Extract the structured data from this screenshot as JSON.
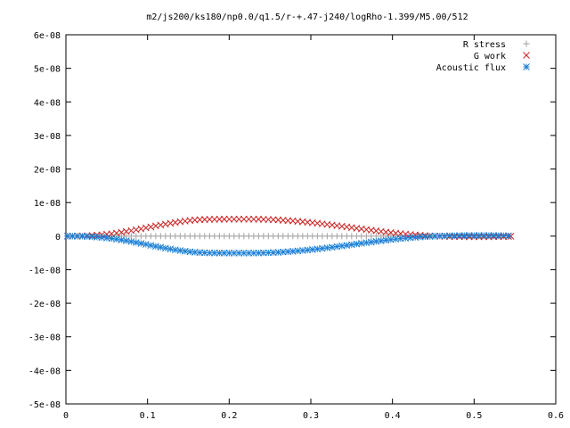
{
  "chart_data": {
    "type": "scatter",
    "title": "m2/js200/ks180/np0.0/q1.5/r-+.47-j240/logRho-1.399/M5.00/512",
    "xlabel": "",
    "ylabel": "",
    "xlim": [
      0,
      0.6
    ],
    "ylim": [
      -5e-08,
      6e-08
    ],
    "x_ticks": [
      "0",
      "0.1",
      "0.2",
      "0.3",
      "0.4",
      "0.5",
      "0.6"
    ],
    "y_ticks": [
      "6e-08",
      "5e-08",
      "4e-08",
      "3e-08",
      "2e-08",
      "1e-08",
      "0",
      "-1e-08",
      "-2e-08",
      "-3e-08",
      "-4e-08",
      "-5e-08"
    ],
    "legend_position": "top-right",
    "series": [
      {
        "name": "R stress",
        "marker": "+",
        "color": "#a0a0a0",
        "x": [
          0.002,
          0.008,
          0.014,
          0.02,
          0.026,
          0.032,
          0.038,
          0.044,
          0.05,
          0.056,
          0.062,
          0.068,
          0.074,
          0.08,
          0.086,
          0.092,
          0.098,
          0.104,
          0.11,
          0.116,
          0.122,
          0.128,
          0.134,
          0.14,
          0.146,
          0.152,
          0.158,
          0.164,
          0.17,
          0.176,
          0.182,
          0.188,
          0.194,
          0.2,
          0.206,
          0.212,
          0.218,
          0.224,
          0.23,
          0.236,
          0.242,
          0.248,
          0.254,
          0.26,
          0.266,
          0.272,
          0.278,
          0.284,
          0.29,
          0.296,
          0.302,
          0.308,
          0.314,
          0.32,
          0.326,
          0.332,
          0.338,
          0.344,
          0.35,
          0.356,
          0.362,
          0.368,
          0.374,
          0.38,
          0.386,
          0.392,
          0.398,
          0.404,
          0.41,
          0.416,
          0.422,
          0.428,
          0.434,
          0.44,
          0.446,
          0.452,
          0.458,
          0.464,
          0.47,
          0.476,
          0.482,
          0.488,
          0.494,
          0.5,
          0.506,
          0.512,
          0.518,
          0.524,
          0.53,
          0.536,
          0.542
        ],
        "y": [
          0,
          0,
          0,
          0,
          0,
          0,
          0,
          0,
          0,
          0,
          0,
          0,
          0,
          0,
          0,
          0,
          0,
          0,
          0,
          0,
          0,
          0,
          0,
          0,
          0,
          0,
          0,
          0,
          0,
          0,
          0,
          0,
          0,
          0,
          0,
          0,
          0,
          0,
          0,
          0,
          0,
          0,
          0,
          0,
          0,
          0,
          0,
          0,
          0,
          0,
          0,
          0,
          0,
          0,
          0,
          0,
          0,
          0,
          0,
          0,
          0,
          0,
          0,
          0,
          0,
          0,
          0,
          0,
          0,
          0,
          0,
          0,
          0,
          0,
          0,
          0,
          0,
          0,
          0,
          0,
          0,
          0,
          0,
          0,
          0,
          0,
          0,
          0,
          0,
          0,
          0
        ]
      },
      {
        "name": "G work",
        "marker": "x",
        "color": "#cc2222",
        "x": [
          0.002,
          0.008,
          0.014,
          0.02,
          0.026,
          0.032,
          0.038,
          0.044,
          0.05,
          0.056,
          0.062,
          0.068,
          0.074,
          0.08,
          0.086,
          0.092,
          0.098,
          0.104,
          0.11,
          0.116,
          0.122,
          0.128,
          0.134,
          0.14,
          0.146,
          0.152,
          0.158,
          0.164,
          0.17,
          0.176,
          0.182,
          0.188,
          0.194,
          0.2,
          0.206,
          0.212,
          0.218,
          0.224,
          0.23,
          0.236,
          0.242,
          0.248,
          0.254,
          0.26,
          0.266,
          0.272,
          0.278,
          0.284,
          0.29,
          0.296,
          0.302,
          0.308,
          0.314,
          0.32,
          0.326,
          0.332,
          0.338,
          0.344,
          0.35,
          0.356,
          0.362,
          0.368,
          0.374,
          0.38,
          0.386,
          0.392,
          0.398,
          0.404,
          0.41,
          0.416,
          0.422,
          0.428,
          0.434,
          0.44,
          0.446,
          0.452,
          0.458,
          0.464,
          0.47,
          0.476,
          0.482,
          0.488,
          0.494,
          0.5,
          0.506,
          0.512,
          0.518,
          0.524,
          0.53,
          0.536,
          0.542,
          0.545
        ],
        "y": [
          0,
          5e-12,
          2e-11,
          5e-11,
          1e-10,
          1.8e-10,
          2.8e-10,
          4e-10,
          5.5e-10,
          7.2e-10,
          9.2e-10,
          1.14e-09,
          1.38e-09,
          1.63e-09,
          1.9e-09,
          2.18e-09,
          2.46e-09,
          2.75e-09,
          3.03e-09,
          3.31e-09,
          3.58e-09,
          3.84e-09,
          4.08e-09,
          4.3e-09,
          4.49e-09,
          4.66e-09,
          4.8e-09,
          4.9e-09,
          4.97e-09,
          5.01e-09,
          5.02e-09,
          5.03e-09,
          5.04e-09,
          5.05e-09,
          5.05e-09,
          5.05e-09,
          5.05e-09,
          5.05e-09,
          5.05e-09,
          5.03e-09,
          5e-09,
          4.95e-09,
          4.9e-09,
          4.83e-09,
          4.74e-09,
          4.64e-09,
          4.53e-09,
          4.41e-09,
          4.28e-09,
          4.14e-09,
          3.99e-09,
          3.83e-09,
          3.66e-09,
          3.49e-09,
          3.31e-09,
          3.12e-09,
          2.93e-09,
          2.74e-09,
          2.54e-09,
          2.35e-09,
          2.15e-09,
          1.96e-09,
          1.77e-09,
          1.58e-09,
          1.4e-09,
          1.22e-09,
          1.05e-09,
          8.9e-10,
          7.4e-10,
          6e-10,
          4.7e-10,
          3.5e-10,
          2.5e-10,
          1.6e-10,
          8e-11,
          2e-11,
          -3e-11,
          -7e-11,
          -1.1e-10,
          -1.4e-10,
          -1.6e-10,
          -1.8e-10,
          -1.9e-10,
          -2e-10,
          -2e-10,
          -2e-10,
          -2e-10,
          -1.9e-10,
          -1.7e-10,
          -1.4e-10,
          -1e-10,
          -4e-11
        ]
      },
      {
        "name": "Acoustic flux",
        "marker": "*",
        "color": "#1a7fd6",
        "x": [
          0.002,
          0.008,
          0.014,
          0.02,
          0.026,
          0.032,
          0.038,
          0.044,
          0.05,
          0.056,
          0.062,
          0.068,
          0.074,
          0.08,
          0.086,
          0.092,
          0.098,
          0.104,
          0.11,
          0.116,
          0.122,
          0.128,
          0.134,
          0.14,
          0.146,
          0.152,
          0.158,
          0.164,
          0.17,
          0.176,
          0.182,
          0.188,
          0.194,
          0.2,
          0.206,
          0.212,
          0.218,
          0.224,
          0.23,
          0.236,
          0.242,
          0.248,
          0.254,
          0.26,
          0.266,
          0.272,
          0.278,
          0.284,
          0.29,
          0.296,
          0.302,
          0.308,
          0.314,
          0.32,
          0.326,
          0.332,
          0.338,
          0.344,
          0.35,
          0.356,
          0.362,
          0.368,
          0.374,
          0.38,
          0.386,
          0.392,
          0.398,
          0.404,
          0.41,
          0.416,
          0.422,
          0.428,
          0.434,
          0.44,
          0.446,
          0.452,
          0.458,
          0.464,
          0.47,
          0.476,
          0.482,
          0.488,
          0.494,
          0.5,
          0.506,
          0.512,
          0.518,
          0.524,
          0.53,
          0.536,
          0.542
        ],
        "y": [
          0,
          -5e-12,
          -2e-11,
          -5e-11,
          -1e-10,
          -1.8e-10,
          -2.8e-10,
          -4e-10,
          -5.5e-10,
          -7.2e-10,
          -9.2e-10,
          -1.14e-09,
          -1.38e-09,
          -1.63e-09,
          -1.9e-09,
          -2.18e-09,
          -2.46e-09,
          -2.75e-09,
          -3.03e-09,
          -3.31e-09,
          -3.58e-09,
          -3.84e-09,
          -4.08e-09,
          -4.3e-09,
          -4.49e-09,
          -4.66e-09,
          -4.8e-09,
          -4.9e-09,
          -4.97e-09,
          -5.01e-09,
          -5.02e-09,
          -5.03e-09,
          -5.04e-09,
          -5.05e-09,
          -5.05e-09,
          -5.05e-09,
          -5.05e-09,
          -5.05e-09,
          -5.05e-09,
          -5.03e-09,
          -5e-09,
          -4.95e-09,
          -4.9e-09,
          -4.83e-09,
          -4.74e-09,
          -4.64e-09,
          -4.53e-09,
          -4.41e-09,
          -4.28e-09,
          -4.14e-09,
          -3.99e-09,
          -3.83e-09,
          -3.66e-09,
          -3.49e-09,
          -3.31e-09,
          -3.12e-09,
          -2.93e-09,
          -2.74e-09,
          -2.54e-09,
          -2.35e-09,
          -2.15e-09,
          -1.96e-09,
          -1.77e-09,
          -1.58e-09,
          -1.4e-09,
          -1.22e-09,
          -1.05e-09,
          -8.9e-10,
          -7.4e-10,
          -6e-10,
          -4.7e-10,
          -3.5e-10,
          -2.5e-10,
          -1.6e-10,
          -8e-11,
          -2e-11,
          3e-11,
          7e-11,
          1.1e-10,
          1.4e-10,
          1.6e-10,
          1.8e-10,
          1.9e-10,
          2e-10,
          2e-10,
          2e-10,
          2e-10,
          1.9e-10,
          1.7e-10,
          1.4e-10,
          1e-10
        ]
      }
    ]
  }
}
